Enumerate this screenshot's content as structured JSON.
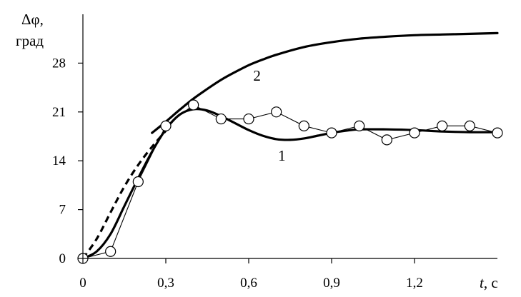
{
  "chart_data": {
    "type": "line",
    "title": "",
    "ylabel_symbol": "Δφ,",
    "ylabel_unit": "град",
    "xlabel_var": "t",
    "xlabel_unit": ", с",
    "xlim": [
      0,
      1.5
    ],
    "ylim": [
      0,
      35
    ],
    "x_ticks": [
      {
        "value": 0,
        "label": "0"
      },
      {
        "value": 0.3,
        "label": "0,3"
      },
      {
        "value": 0.6,
        "label": "0,6"
      },
      {
        "value": 0.9,
        "label": "0,9"
      },
      {
        "value": 1.2,
        "label": "1,2"
      }
    ],
    "y_ticks": [
      {
        "value": 0,
        "label": "0"
      },
      {
        "value": 7,
        "label": "7"
      },
      {
        "value": 14,
        "label": "14"
      },
      {
        "value": 21,
        "label": "21"
      },
      {
        "value": 28,
        "label": "28"
      }
    ],
    "grid": false,
    "series": [
      {
        "name": "1",
        "style": "solid-thick",
        "x": [
          0,
          0.05,
          0.1,
          0.15,
          0.2,
          0.25,
          0.3,
          0.35,
          0.4,
          0.45,
          0.5,
          0.55,
          0.6,
          0.65,
          0.7,
          0.75,
          0.8,
          0.85,
          0.9,
          0.95,
          1.0,
          1.1,
          1.2,
          1.3,
          1.4,
          1.5
        ],
        "y": [
          0,
          1.0,
          3.5,
          7.5,
          11.5,
          15.3,
          18.5,
          20.6,
          21.4,
          21.2,
          20.4,
          19.4,
          18.4,
          17.6,
          17.1,
          17.0,
          17.2,
          17.6,
          18.0,
          18.3,
          18.5,
          18.5,
          18.4,
          18.2,
          18.1,
          18.1
        ]
      },
      {
        "name": "2",
        "style": "solid-thick",
        "x": [
          0.25,
          0.3,
          0.35,
          0.4,
          0.45,
          0.5,
          0.55,
          0.6,
          0.65,
          0.7,
          0.8,
          0.9,
          1.0,
          1.1,
          1.2,
          1.3,
          1.4,
          1.5
        ],
        "y": [
          18.0,
          19.6,
          21.3,
          22.9,
          24.3,
          25.6,
          26.7,
          27.7,
          28.5,
          29.2,
          30.3,
          31.0,
          31.5,
          31.8,
          32.0,
          32.1,
          32.2,
          32.3
        ]
      },
      {
        "name": "",
        "style": "dashed-thick",
        "x": [
          0,
          0.05,
          0.1,
          0.15,
          0.2,
          0.25,
          0.3
        ],
        "y": [
          0,
          2.8,
          6.6,
          10.3,
          13.4,
          16.0,
          18.3
        ]
      },
      {
        "name": "",
        "style": "thin-markers",
        "x": [
          0,
          0.1,
          0.2,
          0.3,
          0.4,
          0.5,
          0.6,
          0.7,
          0.8,
          0.9,
          1.0,
          1.1,
          1.2,
          1.3,
          1.4,
          1.5
        ],
        "y": [
          0,
          1,
          11,
          19,
          22,
          20,
          20,
          21,
          19,
          18,
          19,
          17,
          18,
          19,
          19,
          18
        ]
      }
    ],
    "annotations": [
      {
        "text": "1",
        "x": 0.72,
        "y": 14.0
      },
      {
        "text": "2",
        "x": 0.63,
        "y": 25.5
      }
    ]
  }
}
